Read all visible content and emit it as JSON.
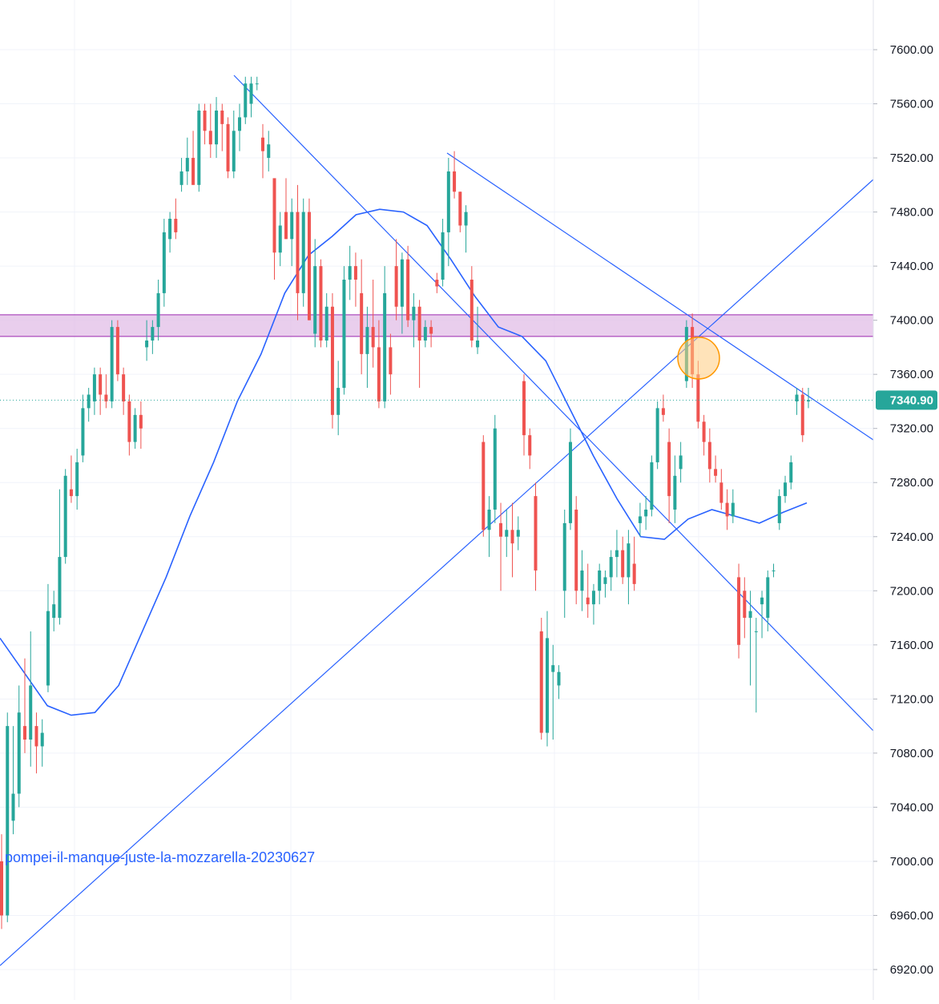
{
  "chart_data": {
    "type": "candlestick",
    "y_axis": {
      "ticks": [
        "6920.00",
        "6960.00",
        "7000.00",
        "7040.00",
        "7080.00",
        "7120.00",
        "7160.00",
        "7200.00",
        "7240.00",
        "7280.00",
        "7320.00",
        "7360.00",
        "7400.00",
        "7440.00",
        "7480.00",
        "7520.00",
        "7560.00",
        "7600.00"
      ],
      "range": [
        6905,
        7642
      ],
      "position": "right"
    },
    "last_price": {
      "value": 7340.9,
      "label": "7340.90",
      "color": "#26a69a"
    },
    "watermark_text": "pompei-il-manque-juste-la-mozzarella-20230627",
    "grid": true,
    "colors": {
      "up": "#26a69a",
      "down": "#ef5350",
      "lines": "#2962ff",
      "zone": "#e1bee7",
      "zone_border": "#9c27b0",
      "highlight": "#ffcc80"
    },
    "resistance_zone": {
      "low": 7388,
      "high": 7404
    },
    "candles": [
      [
        7000,
        7020,
        6950,
        6960
      ],
      [
        6960,
        7110,
        6955,
        7100
      ],
      [
        7030,
        7100,
        7020,
        7050
      ],
      [
        7050,
        7130,
        7040,
        7110
      ],
      [
        7100,
        7150,
        7080,
        7090
      ],
      [
        7090,
        7170,
        7070,
        7130
      ],
      [
        7100,
        7110,
        7065,
        7085
      ],
      [
        7085,
        7105,
        7070,
        7095
      ],
      [
        7130,
        7205,
        7125,
        7185
      ],
      [
        7180,
        7200,
        7170,
        7190
      ],
      [
        7180,
        7275,
        7175,
        7225
      ],
      [
        7225,
        7290,
        7220,
        7285
      ],
      [
        7275,
        7300,
        7265,
        7270
      ],
      [
        7270,
        7305,
        7260,
        7295
      ],
      [
        7300,
        7345,
        7295,
        7335
      ],
      [
        7335,
        7350,
        7325,
        7345
      ],
      [
        7340,
        7365,
        7330,
        7360
      ],
      [
        7360,
        7365,
        7330,
        7345
      ],
      [
        7345,
        7360,
        7335,
        7340
      ],
      [
        7340,
        7400,
        7335,
        7395
      ],
      [
        7395,
        7400,
        7355,
        7360
      ],
      [
        7360,
        7365,
        7330,
        7340
      ],
      [
        7340,
        7345,
        7300,
        7310
      ],
      [
        7310,
        7335,
        7305,
        7330
      ],
      [
        7330,
        7340,
        7305,
        7320
      ],
      [
        7380,
        7400,
        7370,
        7385
      ],
      [
        7385,
        7400,
        7375,
        7395
      ],
      [
        7395,
        7430,
        7385,
        7420
      ],
      [
        7420,
        7475,
        7410,
        7465
      ],
      [
        7460,
        7480,
        7450,
        7475
      ],
      [
        7475,
        7490,
        7460,
        7465
      ],
      [
        7500,
        7520,
        7495,
        7510
      ],
      [
        7510,
        7535,
        7500,
        7520
      ],
      [
        7520,
        7540,
        7505,
        7500
      ],
      [
        7500,
        7560,
        7495,
        7555
      ],
      [
        7555,
        7560,
        7530,
        7540
      ],
      [
        7540,
        7560,
        7520,
        7530
      ],
      [
        7530,
        7565,
        7520,
        7555
      ],
      [
        7555,
        7560,
        7525,
        7545
      ],
      [
        7545,
        7550,
        7505,
        7510
      ],
      [
        7510,
        7555,
        7505,
        7540
      ],
      [
        7540,
        7560,
        7525,
        7550
      ],
      [
        7550,
        7580,
        7545,
        7575
      ],
      [
        7560,
        7580,
        7550,
        7575
      ],
      [
        7575,
        7580,
        7570,
        7575
      ],
      [
        7535,
        7545,
        7505,
        7525
      ],
      [
        7520,
        7540,
        7510,
        7530
      ],
      [
        7505,
        7500,
        7430,
        7450
      ],
      [
        7450,
        7480,
        7440,
        7470
      ],
      [
        7480,
        7505,
        7460,
        7460
      ],
      [
        7460,
        7490,
        7440,
        7480
      ],
      [
        7480,
        7500,
        7400,
        7420
      ],
      [
        7420,
        7490,
        7410,
        7480
      ],
      [
        7480,
        7490,
        7400,
        7400
      ],
      [
        7390,
        7460,
        7380,
        7440
      ],
      [
        7440,
        7445,
        7380,
        7385
      ],
      [
        7385,
        7420,
        7380,
        7410
      ],
      [
        7410,
        7420,
        7320,
        7330
      ],
      [
        7330,
        7370,
        7315,
        7350
      ],
      [
        7350,
        7440,
        7345,
        7430
      ],
      [
        7430,
        7455,
        7415,
        7440
      ],
      [
        7440,
        7450,
        7410,
        7430
      ],
      [
        7420,
        7445,
        7360,
        7375
      ],
      [
        7375,
        7410,
        7350,
        7395
      ],
      [
        7395,
        7430,
        7365,
        7380
      ],
      [
        7380,
        7400,
        7335,
        7340
      ],
      [
        7340,
        7440,
        7335,
        7420
      ],
      [
        7380,
        7390,
        7345,
        7360
      ],
      [
        7440,
        7460,
        7400,
        7410
      ],
      [
        7410,
        7450,
        7390,
        7445
      ],
      [
        7445,
        7455,
        7395,
        7400
      ],
      [
        7400,
        7420,
        7380,
        7410
      ],
      [
        7410,
        7415,
        7350,
        7385
      ],
      [
        7385,
        7400,
        7380,
        7395
      ],
      [
        7395,
        7400,
        7380,
        7390
      ],
      [
        7430,
        7435,
        7420,
        7425
      ],
      [
        7430,
        7475,
        7425,
        7465
      ],
      [
        7465,
        7520,
        7440,
        7510
      ],
      [
        7510,
        7525,
        7490,
        7495
      ],
      [
        7495,
        7495,
        7465,
        7470
      ],
      [
        7470,
        7485,
        7450,
        7480
      ],
      [
        7430,
        7440,
        7380,
        7385
      ],
      [
        7380,
        7410,
        7375,
        7385
      ],
      [
        7310,
        7315,
        7240,
        7245
      ],
      [
        7245,
        7270,
        7225,
        7260
      ],
      [
        7260,
        7330,
        7250,
        7320
      ],
      [
        7250,
        7265,
        7200,
        7240
      ],
      [
        7240,
        7260,
        7225,
        7245
      ],
      [
        7245,
        7265,
        7210,
        7235
      ],
      [
        7240,
        7255,
        7230,
        7245
      ],
      [
        7355,
        7360,
        7300,
        7315
      ],
      [
        7315,
        7320,
        7290,
        7300
      ],
      [
        7270,
        7280,
        7200,
        7215
      ],
      [
        7170,
        7180,
        7090,
        7095
      ],
      [
        7095,
        7185,
        7085,
        7165
      ],
      [
        7140,
        7160,
        7090,
        7145
      ],
      [
        7130,
        7145,
        7120,
        7140
      ],
      [
        7200,
        7260,
        7180,
        7250
      ],
      [
        7250,
        7320,
        7245,
        7310
      ],
      [
        7260,
        7270,
        7190,
        7200
      ],
      [
        7200,
        7230,
        7185,
        7215
      ],
      [
        7195,
        7220,
        7180,
        7190
      ],
      [
        7190,
        7205,
        7175,
        7200
      ],
      [
        7200,
        7220,
        7190,
        7215
      ],
      [
        7205,
        7215,
        7195,
        7210
      ],
      [
        7210,
        7230,
        7200,
        7225
      ],
      [
        7225,
        7245,
        7210,
        7230
      ],
      [
        7230,
        7240,
        7205,
        7210
      ],
      [
        7210,
        7245,
        7190,
        7235
      ],
      [
        7220,
        7240,
        7200,
        7205
      ],
      [
        7250,
        7265,
        7240,
        7255
      ],
      [
        7255,
        7270,
        7245,
        7260
      ],
      [
        7260,
        7300,
        7255,
        7295
      ],
      [
        7295,
        7340,
        7290,
        7335
      ],
      [
        7335,
        7345,
        7325,
        7330
      ],
      [
        7310,
        7320,
        7250,
        7270
      ],
      [
        7260,
        7300,
        7250,
        7285
      ],
      [
        7290,
        7310,
        7280,
        7300
      ],
      [
        7355,
        7400,
        7350,
        7395
      ],
      [
        7395,
        7405,
        7350,
        7360
      ],
      [
        7360,
        7370,
        7320,
        7325
      ],
      [
        7325,
        7330,
        7300,
        7310
      ],
      [
        7310,
        7320,
        7280,
        7290
      ],
      [
        7290,
        7300,
        7280,
        7285
      ],
      [
        7280,
        7290,
        7260,
        7265
      ],
      [
        7265,
        7275,
        7245,
        7255
      ],
      [
        7255,
        7275,
        7250,
        7265
      ],
      [
        7210,
        7220,
        7150,
        7160
      ],
      [
        7200,
        7210,
        7165,
        7180
      ],
      [
        7180,
        7200,
        7130,
        7185
      ],
      [
        7170,
        7180,
        7110,
        7170
      ],
      [
        7190,
        7200,
        7165,
        7195
      ],
      [
        7180,
        7215,
        7170,
        7210
      ],
      [
        7215,
        7220,
        7210,
        7215
      ],
      [
        7250,
        7275,
        7245,
        7270
      ],
      [
        7270,
        7285,
        7265,
        7280
      ],
      [
        7280,
        7300,
        7275,
        7295
      ],
      [
        7340,
        7350,
        7330,
        7345
      ],
      [
        7345,
        7350,
        7310,
        7315
      ],
      [
        7340,
        7350,
        7335,
        7341
      ]
    ],
    "sma": [
      7165,
      7140,
      7115,
      7108,
      7110,
      7130,
      7170,
      7210,
      7255,
      7295,
      7340,
      7375,
      7420,
      7448,
      7462,
      7478,
      7482,
      7480,
      7470,
      7445,
      7418,
      7395,
      7388,
      7370,
      7335,
      7300,
      7268,
      7240,
      7238,
      7253,
      7260,
      7255,
      7250,
      7258,
      7265
    ]
  }
}
